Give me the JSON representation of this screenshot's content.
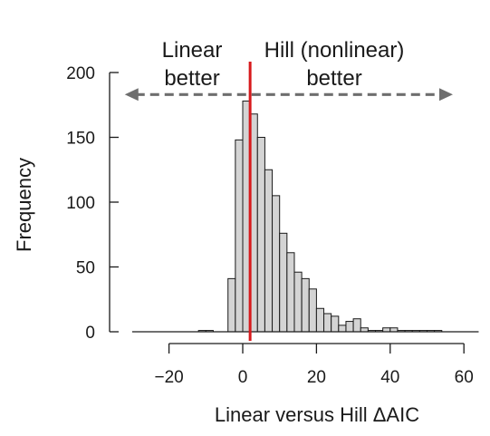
{
  "chart_data": {
    "type": "bar",
    "title": "",
    "xlabel": "Linear versus Hill ΔAIC",
    "ylabel": "Frequency",
    "xlim": [
      -30,
      64
    ],
    "ylim": [
      0,
      200
    ],
    "x_ticks": [
      "−20",
      "0",
      "20",
      "40",
      "60"
    ],
    "y_ticks": [
      "0",
      "50",
      "100",
      "150",
      "200"
    ],
    "bin_width": 2,
    "bins": [
      {
        "start": -12,
        "value": 1
      },
      {
        "start": -10,
        "value": 1
      },
      {
        "start": -4,
        "value": 41
      },
      {
        "start": -2,
        "value": 148
      },
      {
        "start": 0,
        "value": 178
      },
      {
        "start": 2,
        "value": 168
      },
      {
        "start": 4,
        "value": 150
      },
      {
        "start": 6,
        "value": 125
      },
      {
        "start": 8,
        "value": 105
      },
      {
        "start": 10,
        "value": 76
      },
      {
        "start": 12,
        "value": 61
      },
      {
        "start": 14,
        "value": 46
      },
      {
        "start": 16,
        "value": 41
      },
      {
        "start": 18,
        "value": 33
      },
      {
        "start": 20,
        "value": 18
      },
      {
        "start": 22,
        "value": 14
      },
      {
        "start": 24,
        "value": 12
      },
      {
        "start": 26,
        "value": 5
      },
      {
        "start": 28,
        "value": 8
      },
      {
        "start": 30,
        "value": 10
      },
      {
        "start": 32,
        "value": 3
      },
      {
        "start": 34,
        "value": 1
      },
      {
        "start": 36,
        "value": 1
      },
      {
        "start": 38,
        "value": 3
      },
      {
        "start": 40,
        "value": 3
      },
      {
        "start": 42,
        "value": 1
      },
      {
        "start": 44,
        "value": 1
      },
      {
        "start": 46,
        "value": 1
      },
      {
        "start": 48,
        "value": 1
      },
      {
        "start": 50,
        "value": 1
      },
      {
        "start": 52,
        "value": 1
      }
    ],
    "reference_line": {
      "x": 2,
      "color": "#d7191c"
    },
    "arrow": {
      "y": 183,
      "from_x": -32,
      "to_x": 57,
      "color": "#6e6e6e"
    },
    "annotations": {
      "left_line1": "Linear",
      "left_line2": "better",
      "right_line1": "Hill (nonlinear)",
      "right_line2": "better"
    },
    "bar_fill": "#d4d4d4",
    "bar_stroke": "#1a1a1a",
    "grid": false,
    "legend": "none"
  }
}
